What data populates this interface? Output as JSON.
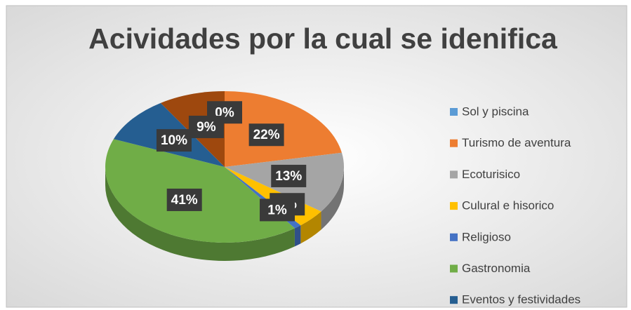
{
  "chart_data": {
    "type": "pie",
    "title": "Acividades por la cual se idenifica",
    "categories": [
      "Sol y piscina",
      "Turismo de aventura",
      "Ecoturisico",
      "Culural e hisorico",
      "Religioso",
      "Gastronomia",
      "Eventos y festividades",
      null
    ],
    "values": [
      0,
      22,
      13,
      4,
      1,
      41,
      10,
      9
    ],
    "value_labels": [
      "0%",
      "22%",
      "13%",
      "4%",
      "1%",
      "41%",
      "10%",
      "9%"
    ],
    "colors": [
      "#5b9bd5",
      "#ed7d31",
      "#a5a5a5",
      "#ffc000",
      "#4472c4",
      "#70ad47",
      "#255e91",
      "#9e480e"
    ],
    "legend": "right"
  }
}
